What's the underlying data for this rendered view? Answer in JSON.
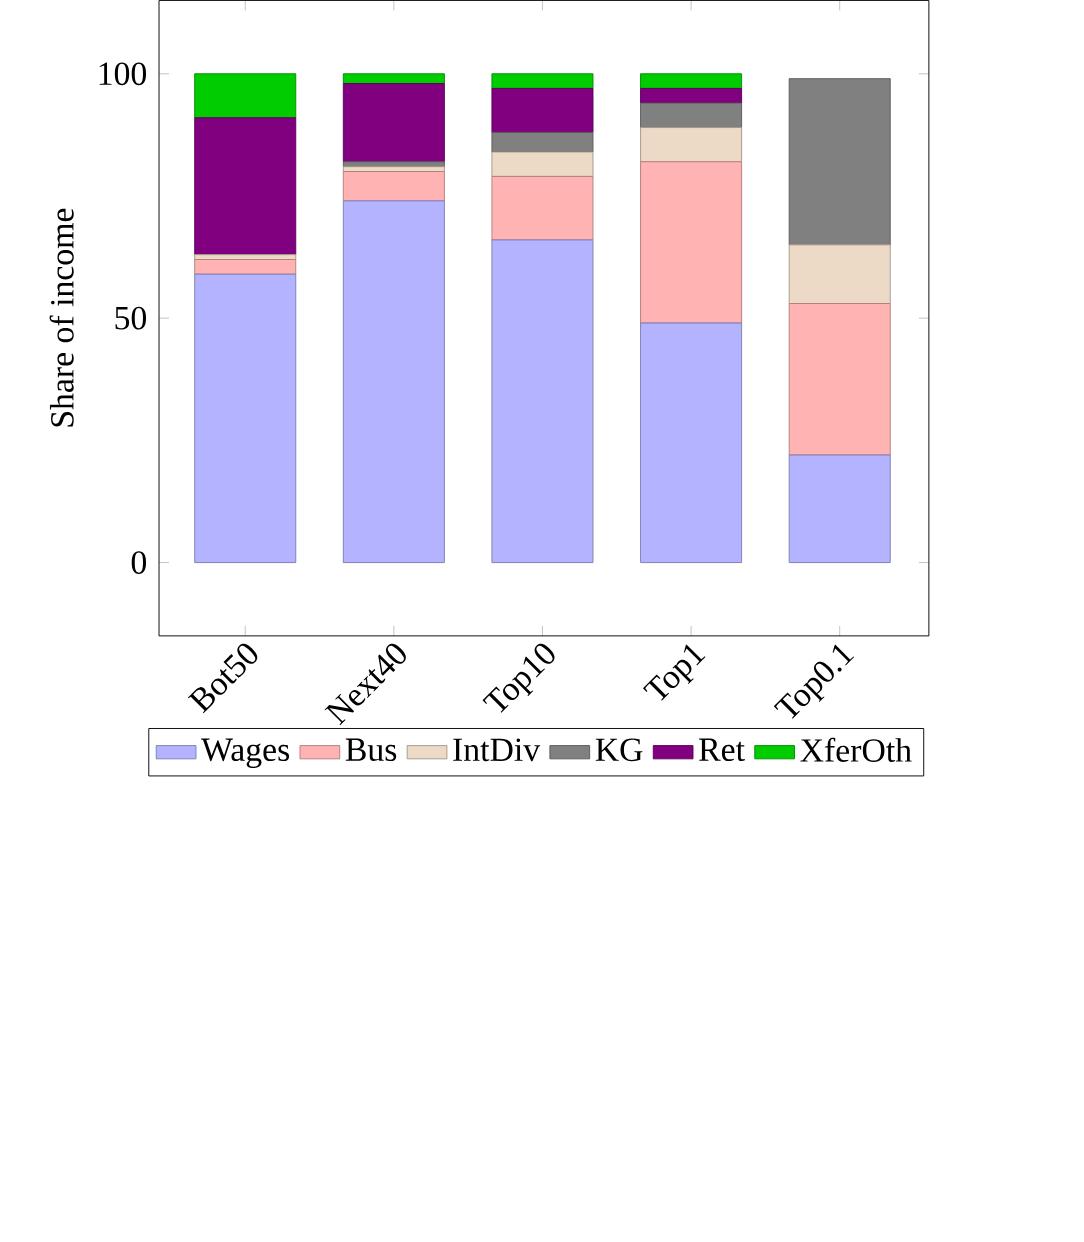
{
  "chart_data": {
    "type": "bar",
    "stacked": true,
    "ylabel": "Share of income",
    "categories": [
      "Bot50",
      "Next40",
      "Top10",
      "Top1",
      "Top0.1"
    ],
    "series": [
      {
        "name": "Wages",
        "color": "#b3b3ff",
        "values": [
          59,
          74,
          66,
          49,
          22
        ]
      },
      {
        "name": "Bus",
        "color": "#ffb3b3",
        "values": [
          3,
          6,
          13,
          33,
          31
        ]
      },
      {
        "name": "IntDiv",
        "color": "#ecd9c6",
        "values": [
          1,
          1,
          5,
          7,
          12
        ]
      },
      {
        "name": "KG",
        "color": "#808080",
        "values": [
          0,
          1,
          4,
          5,
          34
        ]
      },
      {
        "name": "Ret",
        "color": "#800080",
        "values": [
          28,
          16,
          9,
          3,
          0
        ]
      },
      {
        "name": "XferOth",
        "color": "#00cc00",
        "values": [
          9,
          2,
          3,
          3,
          0
        ]
      }
    ],
    "ylim": [
      -15,
      115
    ],
    "yticks": [
      0,
      50,
      100
    ],
    "legend": "bottom",
    "grid": false
  }
}
